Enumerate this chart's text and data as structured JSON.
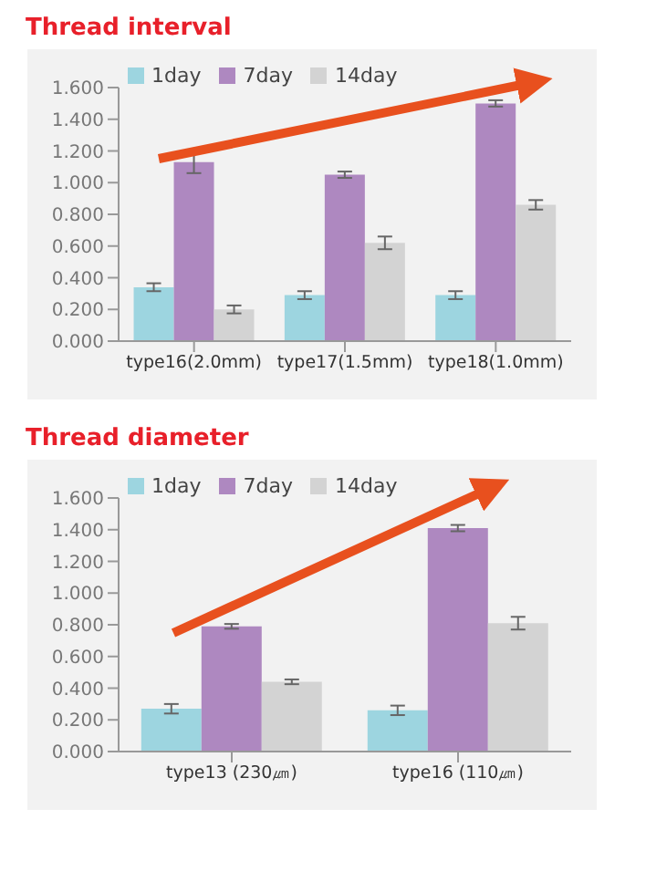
{
  "chart_data": [
    {
      "type": "bar",
      "title": "Thread interval",
      "categories": [
        "type16(2.0mm)",
        "type17(1.5mm)",
        "type18(1.0mm)"
      ],
      "series": [
        {
          "name": "1day",
          "color": "#9dd5e0",
          "values": [
            0.34,
            0.29,
            0.29
          ],
          "errors": [
            0.025,
            0.025,
            0.025
          ]
        },
        {
          "name": "7day",
          "color": "#ae88c0",
          "values": [
            1.13,
            1.05,
            1.5
          ],
          "errors": [
            0.07,
            0.02,
            0.02
          ]
        },
        {
          "name": "14day",
          "color": "#d3d3d3",
          "values": [
            0.2,
            0.62,
            0.86
          ],
          "errors": [
            0.025,
            0.04,
            0.03
          ]
        }
      ],
      "ylim": [
        0,
        1.6
      ],
      "yticks": [
        {
          "value": 0,
          "label": "0.000"
        },
        {
          "value": 0.2,
          "label": "0.200"
        },
        {
          "value": 0.4,
          "label": "0.400"
        },
        {
          "value": 0.6,
          "label": "0.600"
        },
        {
          "value": 0.8,
          "label": "0.800"
        },
        {
          "value": 1,
          "label": "1.000"
        },
        {
          "value": 1.2,
          "label": "1.200"
        },
        {
          "value": 1.4,
          "label": "1.400"
        },
        {
          "value": 1.6,
          "label": "1.600"
        }
      ],
      "legend": "top left"
    },
    {
      "type": "bar",
      "title": "Thread diameter",
      "categories": [
        "type13 (230㎛)",
        "type16 (110㎛)"
      ],
      "series": [
        {
          "name": "1day",
          "color": "#9dd5e0",
          "values": [
            0.27,
            0.26
          ],
          "errors": [
            0.03,
            0.03
          ]
        },
        {
          "name": "7day",
          "color": "#ae88c0",
          "values": [
            0.79,
            1.41
          ],
          "errors": [
            0.015,
            0.02
          ]
        },
        {
          "name": "14day",
          "color": "#d3d3d3",
          "values": [
            0.44,
            0.81
          ],
          "errors": [
            0.015,
            0.04
          ]
        }
      ],
      "ylim": [
        0,
        1.6
      ],
      "yticks": [
        {
          "value": 0,
          "label": "0.000"
        },
        {
          "value": 0.2,
          "label": "0.200"
        },
        {
          "value": 0.4,
          "label": "0.400"
        },
        {
          "value": 0.6,
          "label": "0.600"
        },
        {
          "value": 0.8,
          "label": "0.800"
        },
        {
          "value": 1,
          "label": "1.000"
        },
        {
          "value": 1.2,
          "label": "1.200"
        },
        {
          "value": 1.4,
          "label": "1.400"
        },
        {
          "value": 1.6,
          "label": "1.600"
        }
      ],
      "legend": "top left"
    }
  ]
}
